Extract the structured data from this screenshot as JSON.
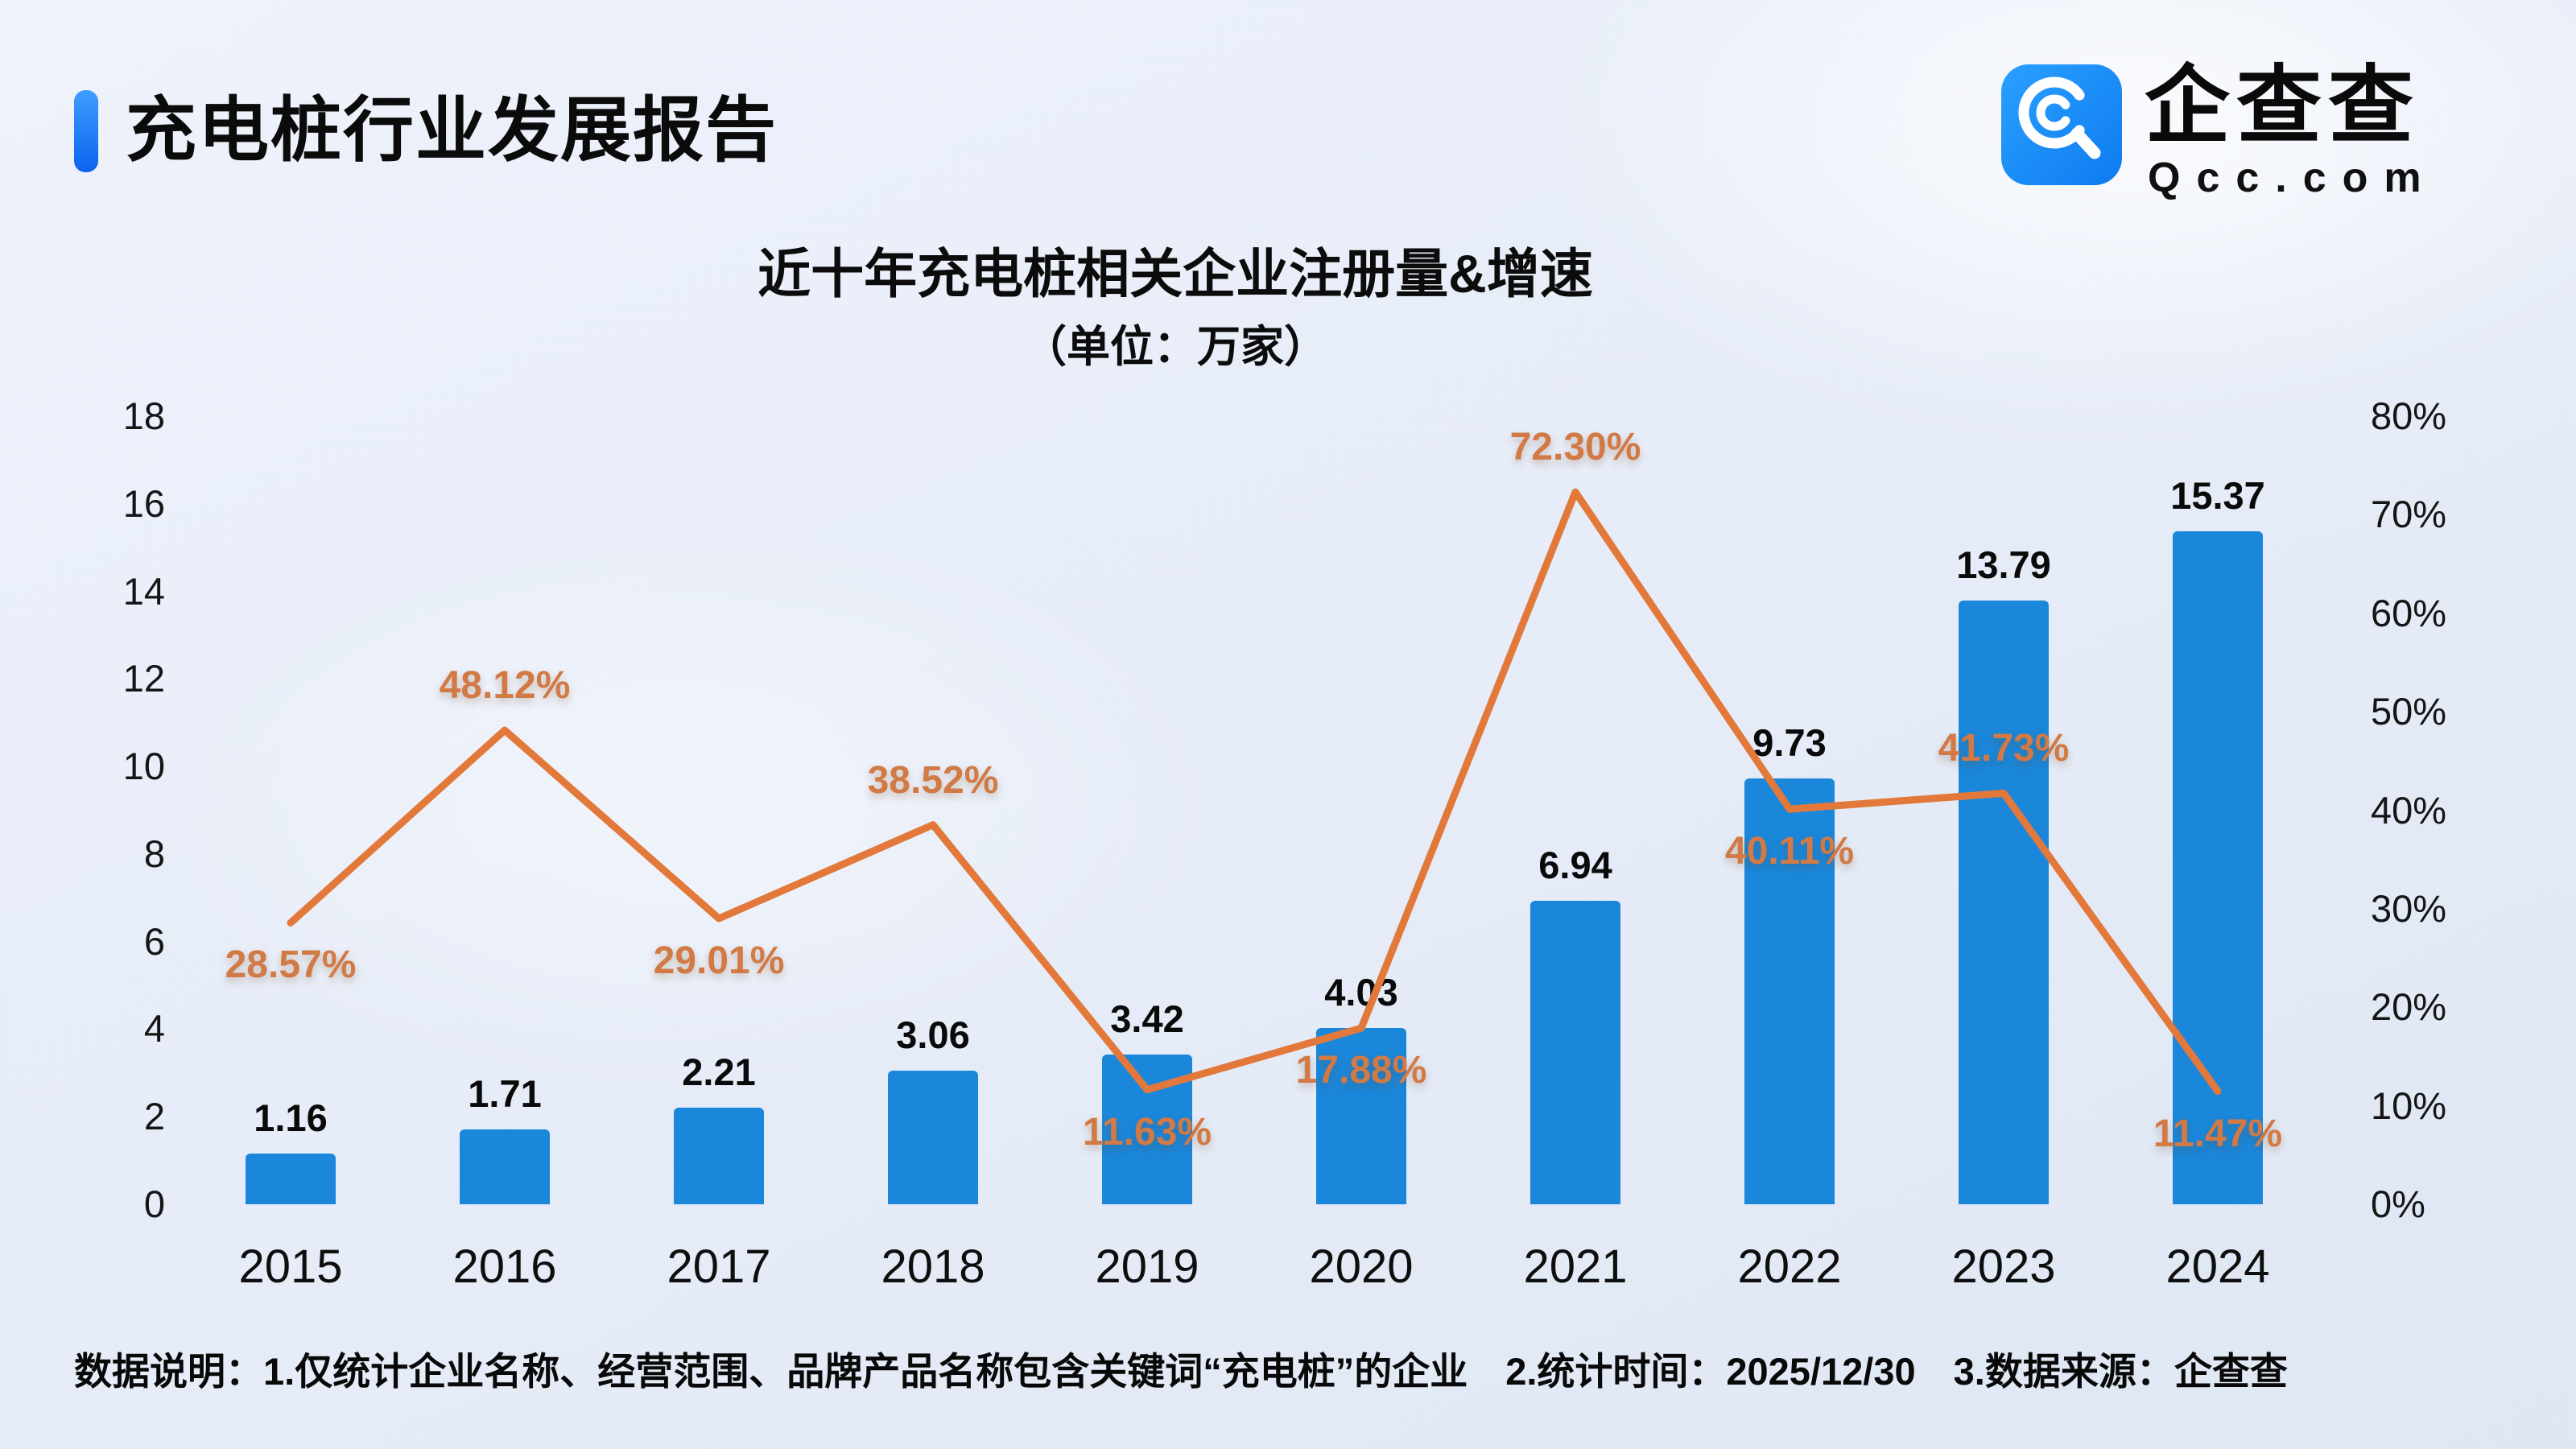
{
  "header": {
    "title": "充电桩行业发展报告"
  },
  "logo": {
    "brand": "企查查",
    "domain": "Qcc.com"
  },
  "footer": {
    "text": "数据说明：1.仅统计企业名称、经营范围、品牌产品名称包含关键词“充电桩”的企业　2.统计时间：2025/12/30　3.数据来源：企查查"
  },
  "chart_data": {
    "type": "bar+line",
    "title": "近十年充电桩相关企业注册量&增速",
    "subtitle": "（单位：万家）",
    "categories": [
      "2015",
      "2016",
      "2017",
      "2018",
      "2019",
      "2020",
      "2021",
      "2022",
      "2023",
      "2024"
    ],
    "series": [
      {
        "name": "注册量",
        "type": "bar",
        "axis": "left",
        "color": "#1b87da",
        "values": [
          1.16,
          1.71,
          2.21,
          3.06,
          3.42,
          4.03,
          6.94,
          9.73,
          13.79,
          15.37
        ]
      },
      {
        "name": "增速",
        "type": "line",
        "axis": "right",
        "color": "#e2793a",
        "unit": "%",
        "values": [
          28.57,
          48.12,
          29.01,
          38.52,
          11.63,
          17.88,
          72.3,
          40.11,
          41.73,
          11.47
        ],
        "label_positions": [
          "below",
          "above",
          "below",
          "above",
          "below",
          "below",
          "above",
          "below",
          "above",
          "below"
        ]
      }
    ],
    "left_axis": {
      "min": 0,
      "max": 18,
      "step": 2
    },
    "right_axis": {
      "min": 0,
      "max": 80,
      "step": 10,
      "format": "percent"
    },
    "grid": false,
    "legend": "none"
  }
}
